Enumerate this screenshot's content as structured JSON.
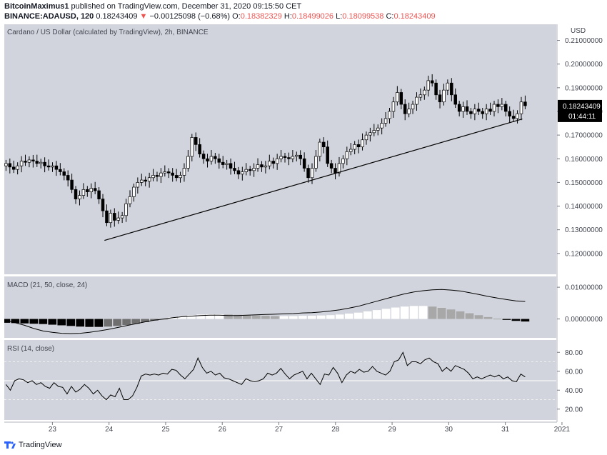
{
  "header": {
    "author": "BitcoinMaximus1",
    "published_text": "published on TradingView.com, December 31, 2020 09:15:50 CET",
    "symbol": "BINANCE:ADAUSD, 120",
    "last": "0.18243409",
    "change": "−0.00125098 (−0.68%)",
    "o_label": "O:",
    "o": "0.18382329",
    "h_label": "H:",
    "h": "0.18499026",
    "l_label": "L:",
    "l": "0.18099538",
    "c_label": "C:",
    "c": "0.18243409"
  },
  "main_pane": {
    "title": "Cardano / US Dollar (calculated by TradingView), 2h, BINANCE",
    "currency": "USD",
    "last_price_label": "0.18243409",
    "countdown_label": "01:44:11"
  },
  "macd_pane": {
    "title": "MACD (21, 50, close, 24)"
  },
  "rsi_pane": {
    "title": "RSI (14, close)"
  },
  "footer": {
    "brand": "TradingView"
  },
  "colors": {
    "pane_bg": "#d1d4dc",
    "up_fill": "#ffffff",
    "down_fill": "#000000",
    "line": "#000000",
    "change_red": "#ef5350"
  },
  "chart_data": [
    {
      "type": "candlestick",
      "title": "Cardano / US Dollar (calculated by TradingView), 2h, BINANCE",
      "x_ticks": [
        "23",
        "24",
        "25",
        "26",
        "27",
        "28",
        "29",
        "30",
        "31",
        "2021"
      ],
      "y_ticks": [
        "0.21000000",
        "0.20000000",
        "0.19000000",
        "0.18000000",
        "0.17000000",
        "0.16000000",
        "0.15000000",
        "0.14000000",
        "0.13000000",
        "0.12000000"
      ],
      "ylim": [
        0.113,
        0.215
      ],
      "xlim": [
        22.15,
        31.9
      ],
      "series": [
        {
          "name": "ADAUSD",
          "values": [
            0.158,
            0.1565,
            0.1555,
            0.157,
            0.159,
            0.1585,
            0.1595,
            0.159,
            0.158,
            0.1585,
            0.157,
            0.1565,
            0.157,
            0.1555,
            0.1545,
            0.153,
            0.151,
            0.147,
            0.143,
            0.1445,
            0.147,
            0.146,
            0.1475,
            0.1465,
            0.143,
            0.138,
            0.133,
            0.137,
            0.134,
            0.135,
            0.136,
            0.141,
            0.144,
            0.148,
            0.15,
            0.151,
            0.1505,
            0.152,
            0.153,
            0.1525,
            0.154,
            0.1545,
            0.154,
            0.153,
            0.152,
            0.153,
            0.156,
            0.161,
            0.169,
            0.166,
            0.162,
            0.16,
            0.159,
            0.161,
            0.16,
            0.1585,
            0.1575,
            0.158,
            0.156,
            0.155,
            0.1535,
            0.1545,
            0.1555,
            0.155,
            0.156,
            0.1575,
            0.1565,
            0.157,
            0.159,
            0.158,
            0.16,
            0.161,
            0.1605,
            0.16,
            0.161,
            0.1615,
            0.16,
            0.156,
            0.152,
            0.156,
            0.161,
            0.167,
            0.165,
            0.158,
            0.156,
            0.154,
            0.158,
            0.16,
            0.163,
            0.164,
            0.166,
            0.165,
            0.168,
            0.17,
            0.171,
            0.172,
            0.173,
            0.175,
            0.177,
            0.18,
            0.184,
            0.188,
            0.183,
            0.179,
            0.181,
            0.183,
            0.186,
            0.187,
            0.189,
            0.193,
            0.192,
            0.187,
            0.184,
            0.189,
            0.192,
            0.187,
            0.183,
            0.18,
            0.182,
            0.18,
            0.179,
            0.181,
            0.18,
            0.179,
            0.181,
            0.18,
            0.183,
            0.182,
            0.183,
            0.18,
            0.178,
            0.177,
            0.179,
            0.184,
            0.1824
          ]
        }
      ],
      "annotations": [
        {
          "type": "trendline",
          "from": {
            "x": 23.92,
            "y": 0.1255
          },
          "to": {
            "x": 31.3,
            "y": 0.1768
          }
        }
      ]
    },
    {
      "type": "bar",
      "title": "MACD (21, 50, close, 24)",
      "y_ticks": [
        "0.01000000",
        "0.00000000"
      ],
      "ylim": [
        -0.0055,
        0.0125
      ],
      "series": [
        {
          "name": "MACD",
          "values": [
            -0.0005,
            -0.0012,
            -0.002,
            -0.003,
            -0.0038,
            -0.0042,
            -0.0045,
            -0.0046,
            -0.0045,
            -0.0042,
            -0.0038,
            -0.0033,
            -0.0027,
            -0.0021,
            -0.0015,
            -0.0009,
            -0.0004,
            0.0,
            0.0004,
            0.0007,
            0.0009,
            0.0011,
            0.0012,
            0.0012,
            0.0011,
            0.0011,
            0.0012,
            0.0013,
            0.0014,
            0.0015,
            0.0016,
            0.0017,
            0.0019,
            0.002,
            0.0022,
            0.0025,
            0.0029,
            0.0034,
            0.004,
            0.0048,
            0.0056,
            0.0064,
            0.0072,
            0.0079,
            0.0085,
            0.0089,
            0.0092,
            0.0093,
            0.0091,
            0.0088,
            0.0083,
            0.0077,
            0.0071,
            0.0066,
            0.0061,
            0.0057,
            0.0055
          ]
        },
        {
          "name": "Histogram",
          "values": [
            -0.0012,
            -0.0013,
            -0.0014,
            -0.0015,
            -0.0016,
            -0.0018,
            -0.002,
            -0.0022,
            -0.0024,
            -0.0025,
            -0.0025,
            -0.0024,
            -0.0022,
            -0.0019,
            -0.0015,
            -0.001,
            -0.0005,
            0.0,
            0.0005,
            0.0009,
            0.0012,
            0.0014,
            0.0015,
            0.0015,
            0.0014,
            0.0013,
            0.0012,
            0.0011,
            0.001,
            0.0009,
            0.0009,
            0.0009,
            0.001,
            0.001,
            0.0011,
            0.0012,
            0.0014,
            0.0017,
            0.002,
            0.0024,
            0.0028,
            0.0032,
            0.0036,
            0.0039,
            0.0041,
            0.0041,
            0.0039,
            0.0035,
            0.003,
            0.0024,
            0.0018,
            0.0012,
            0.0006,
            0.0001,
            -0.0003,
            -0.0006,
            -0.0008
          ]
        }
      ]
    },
    {
      "type": "line",
      "title": "RSI (14, close)",
      "y_ticks": [
        "80.00",
        "60.00",
        "40.00",
        "20.00"
      ],
      "ylim": [
        10,
        90
      ],
      "levels": [
        70,
        50,
        30
      ],
      "series": [
        {
          "name": "RSI",
          "values": [
            46,
            40,
            50,
            52,
            51,
            48,
            50,
            46,
            48,
            44,
            42,
            48,
            44,
            43,
            36,
            44,
            38,
            41,
            46,
            42,
            36,
            40,
            34,
            30,
            35,
            33,
            42,
            30,
            30,
            34,
            43,
            55,
            57,
            56,
            57,
            56,
            58,
            57,
            62,
            61,
            56,
            52,
            57,
            62,
            74,
            64,
            58,
            60,
            56,
            58,
            53,
            52,
            50,
            48,
            46,
            52,
            50,
            49,
            50,
            52,
            58,
            56,
            58,
            63,
            57,
            52,
            56,
            58,
            60,
            52,
            58,
            52,
            46,
            57,
            56,
            64,
            58,
            48,
            56,
            60,
            58,
            62,
            59,
            60,
            65,
            60,
            58,
            56,
            60,
            70,
            72,
            80,
            66,
            70,
            70,
            68,
            72,
            74,
            70,
            68,
            60,
            64,
            60,
            66,
            64,
            62,
            58,
            52,
            54,
            52,
            54,
            56,
            54,
            56,
            52,
            54,
            50,
            49,
            57,
            54
          ]
        }
      ]
    }
  ]
}
